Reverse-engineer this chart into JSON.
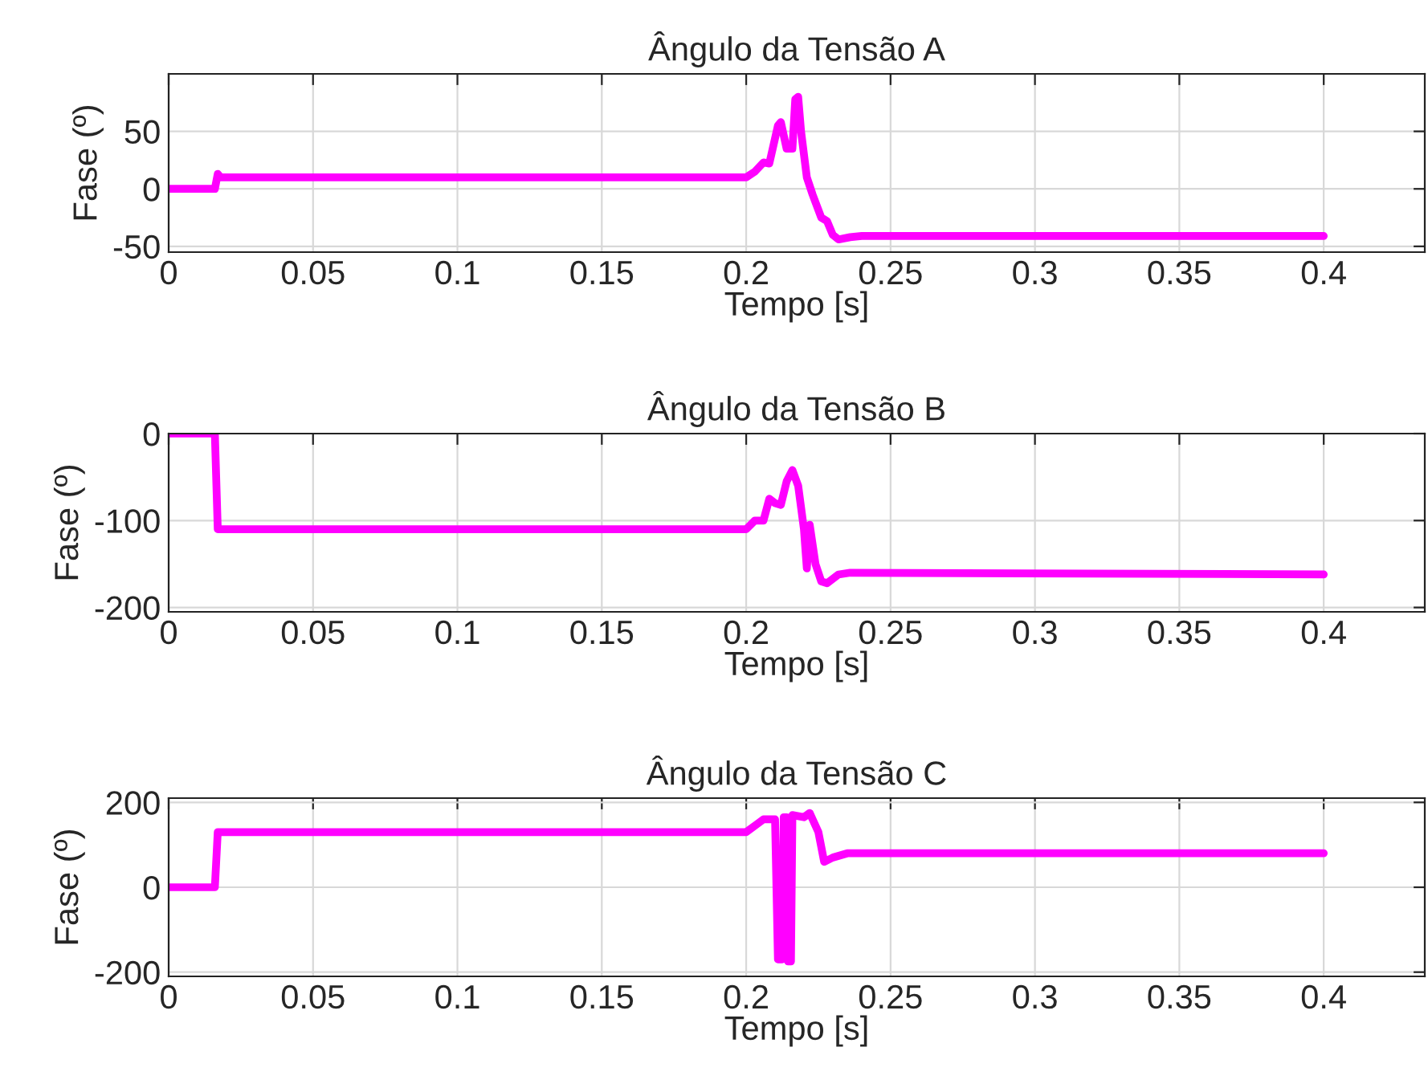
{
  "chart_data": [
    {
      "type": "line",
      "title": "Ângulo da Tensão A",
      "xlabel": "Tempo [s]",
      "ylabel": "Fase (º)",
      "xlim": [
        0,
        0.435
      ],
      "xticks": [
        0,
        0.05,
        0.1,
        0.15,
        0.2,
        0.25,
        0.3,
        0.35,
        0.4
      ],
      "ylim": [
        -55,
        100
      ],
      "yticks": [
        -50,
        0,
        50
      ],
      "grid": true,
      "x": [
        0,
        0.016,
        0.017,
        0.018,
        0.02,
        0.2,
        0.203,
        0.206,
        0.208,
        0.211,
        0.212,
        0.214,
        0.216,
        0.217,
        0.218,
        0.219,
        0.221,
        0.223,
        0.226,
        0.228,
        0.23,
        0.232,
        0.236,
        0.24,
        0.4
      ],
      "series": [
        {
          "color": "#ff00ff",
          "values": [
            0,
            0,
            13,
            10,
            10,
            10,
            15,
            23,
            22,
            55,
            58,
            35,
            35,
            78,
            80,
            50,
            10,
            -5,
            -25,
            -28,
            -40,
            -44,
            -42,
            -41,
            -41
          ]
        }
      ]
    },
    {
      "type": "line",
      "title": "Ângulo da Tensão B",
      "xlabel": "Tempo [s]",
      "ylabel": "Fase (º)",
      "xlim": [
        0,
        0.435
      ],
      "xticks": [
        0,
        0.05,
        0.1,
        0.15,
        0.2,
        0.25,
        0.3,
        0.35,
        0.4
      ],
      "ylim": [
        -205,
        0
      ],
      "yticks": [
        -200,
        -100,
        0
      ],
      "grid": true,
      "x": [
        0,
        0.016,
        0.017,
        0.2,
        0.203,
        0.206,
        0.208,
        0.21,
        0.212,
        0.214,
        0.216,
        0.218,
        0.22,
        0.221,
        0.222,
        0.224,
        0.226,
        0.228,
        0.232,
        0.236,
        0.4
      ],
      "series": [
        {
          "color": "#ff00ff",
          "values": [
            0,
            0,
            -110,
            -110,
            -100,
            -100,
            -75,
            -80,
            -82,
            -55,
            -42,
            -60,
            -110,
            -155,
            -105,
            -150,
            -170,
            -172,
            -162,
            -160,
            -162
          ]
        }
      ]
    },
    {
      "type": "line",
      "title": "Ângulo da Tensão C",
      "xlabel": "Tempo [s]",
      "ylabel": "Fase (º)",
      "xlim": [
        0,
        0.435
      ],
      "xticks": [
        0,
        0.05,
        0.1,
        0.15,
        0.2,
        0.25,
        0.3,
        0.35,
        0.4
      ],
      "ylim": [
        -210,
        210
      ],
      "yticks": [
        -200,
        0,
        200
      ],
      "grid": true,
      "x": [
        0,
        0.016,
        0.017,
        0.2,
        0.203,
        0.206,
        0.21,
        0.211,
        0.2125,
        0.213,
        0.214,
        0.2145,
        0.2155,
        0.216,
        0.22,
        0.222,
        0.225,
        0.227,
        0.23,
        0.235,
        0.4
      ],
      "series": [
        {
          "color": "#ff00ff",
          "values": [
            0,
            0,
            130,
            130,
            145,
            160,
            160,
            -170,
            -170,
            165,
            165,
            -175,
            -175,
            170,
            165,
            175,
            130,
            60,
            70,
            80,
            80
          ]
        }
      ]
    }
  ]
}
